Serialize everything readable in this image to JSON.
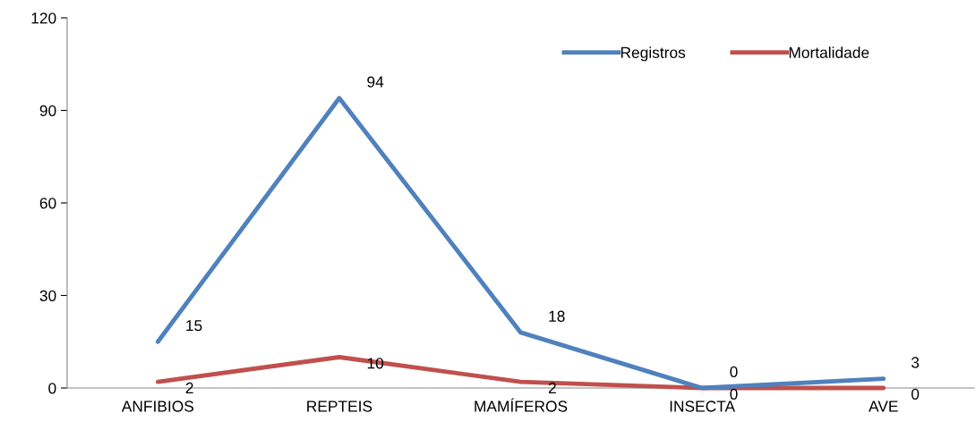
{
  "chart_data": {
    "type": "line",
    "categories": [
      "ANFIBIOS",
      "REPTEIS",
      "MAMÍFEROS",
      "INSECTA",
      "AVE"
    ],
    "series": [
      {
        "name": "Registros",
        "color": "#4f81bd",
        "values": [
          15,
          94,
          18,
          0,
          3
        ]
      },
      {
        "name": "Mortalidade",
        "color": "#c0504d",
        "values": [
          2,
          10,
          2,
          0,
          0
        ]
      }
    ],
    "ylim": [
      0,
      120
    ],
    "yticks": [
      0,
      30,
      60,
      90,
      120
    ],
    "data_labels": true,
    "legend": "top right",
    "grid": false,
    "marker": "none",
    "line_style": "solid"
  }
}
